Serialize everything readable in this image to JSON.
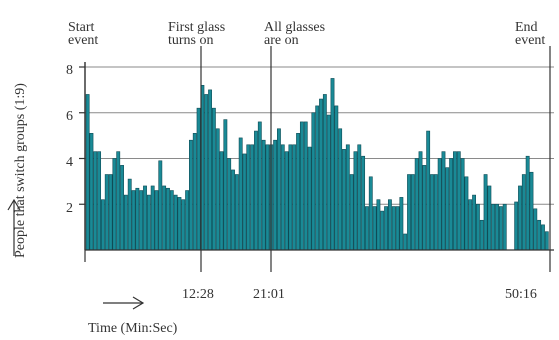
{
  "chart_data": {
    "type": "bar",
    "ylabel": "People that switch groups (1:9)",
    "xlabel": "Time (Min:Sec)",
    "ylim": [
      0,
      8
    ],
    "yticks": [
      "2",
      "4",
      "6",
      "8"
    ],
    "xticks": [
      "12:28",
      "21:01",
      "50:16"
    ],
    "events": [
      {
        "label_lines": [
          "Start",
          "event"
        ]
      },
      {
        "label_lines": [
          "First glass",
          "turns on"
        ]
      },
      {
        "label_lines": [
          "All glasses",
          "are on"
        ]
      },
      {
        "label_lines": [
          "End",
          "event"
        ]
      }
    ],
    "values": [
      6.8,
      5.1,
      4.3,
      4.3,
      2.2,
      3.3,
      3.3,
      4.0,
      4.3,
      3.7,
      2.4,
      3.1,
      2.6,
      2.7,
      2.6,
      2.8,
      2.4,
      2.8,
      2.6,
      3.9,
      2.8,
      2.7,
      2.6,
      2.4,
      2.3,
      2.2,
      2.6,
      4.8,
      5.1,
      6.2,
      7.2,
      6.8,
      7.0,
      6.2,
      5.3,
      4.3,
      5.7,
      4.0,
      3.5,
      3.3,
      4.9,
      4.2,
      4.6,
      4.6,
      5.2,
      5.6,
      4.8,
      4.6,
      4.6,
      4.8,
      5.3,
      4.6,
      4.3,
      4.6,
      4.6,
      5.1,
      5.6,
      5.6,
      4.5,
      6.0,
      6.3,
      6.6,
      6.8,
      5.9,
      7.5,
      6.3,
      5.3,
      4.4,
      4.6,
      3.3,
      4.3,
      4.6,
      4.1,
      1.9,
      3.2,
      1.9,
      2.2,
      1.7,
      1.9,
      2.2,
      1.9,
      1.9,
      2.3,
      0.7,
      3.3,
      3.3,
      4.0,
      4.3,
      3.7,
      5.2,
      3.3,
      3.3,
      4.0,
      4.3,
      3.6,
      4.0,
      4.3,
      4.3,
      4.0,
      3.2,
      2.2,
      2.4,
      2.0,
      1.3,
      3.3,
      2.8,
      2.0,
      2.0,
      1.9,
      2.0,
      null,
      null,
      2.1,
      2.8,
      3.3,
      4.1,
      3.4,
      1.8,
      1.3,
      1.1,
      0.8
    ]
  }
}
